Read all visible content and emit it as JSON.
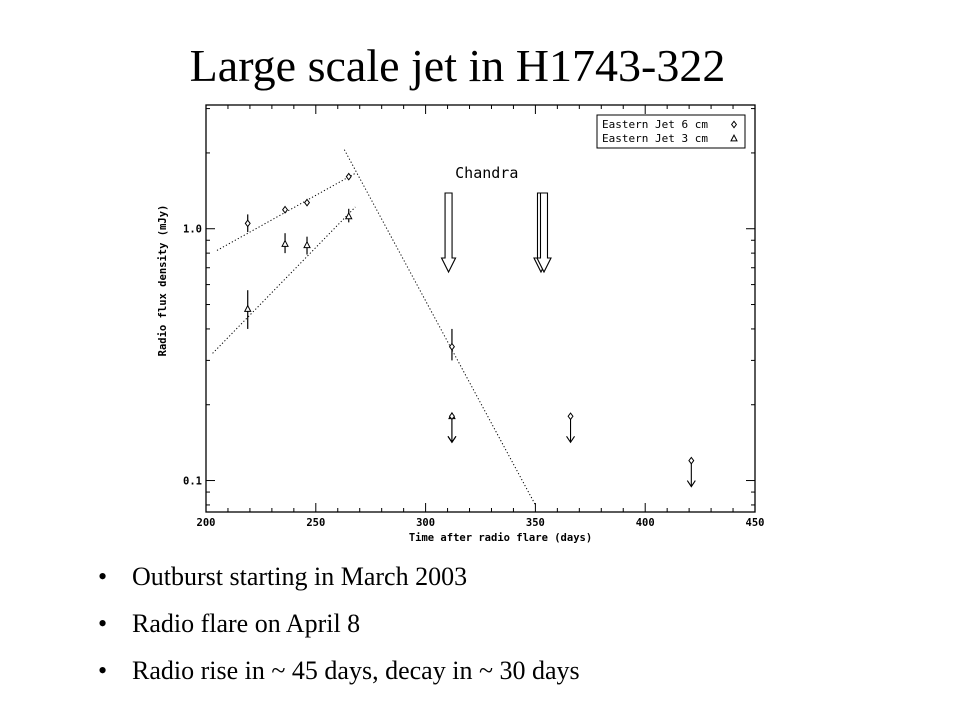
{
  "slide": {
    "title": "Large scale jet in H1743-322",
    "bullets": [
      "Outburst starting in March 2003",
      "Radio flare on April 8",
      "Radio rise in ~ 45 days, decay in ~ 30 days"
    ],
    "bullet_glyph": "•"
  },
  "chart_data": {
    "type": "scatter",
    "xlabel": "Time after radio flare (days)",
    "ylabel": "Radio flux density (mJy)",
    "xlim": [
      200,
      450
    ],
    "ylim": [
      0.075,
      3.1
    ],
    "yscale": "log",
    "x_ticks": [
      200,
      250,
      300,
      350,
      400,
      450
    ],
    "y_ticks": [
      {
        "value": 0.1,
        "label": "0.1"
      },
      {
        "value": 1.0,
        "label": "1.0"
      }
    ],
    "grid": false,
    "legend_position": "top-right",
    "legend": [
      {
        "label": "Eastern Jet 6 cm",
        "marker": "diamond"
      },
      {
        "label": "Eastern Jet 3 cm",
        "marker": "triangle"
      }
    ],
    "annotation": "Chandra",
    "chandra_days": [
      310,
      353
    ],
    "series": [
      {
        "name": "Eastern Jet 6 cm",
        "marker": "diamond",
        "points": [
          {
            "x": 219,
            "y": 1.05,
            "lo": 0.97,
            "hi": 1.14
          },
          {
            "x": 236,
            "y": 1.19
          },
          {
            "x": 246,
            "y": 1.27
          },
          {
            "x": 265,
            "y": 1.61
          },
          {
            "x": 312,
            "y": 0.34,
            "lo": 0.3,
            "hi": 0.4
          }
        ]
      },
      {
        "name": "Eastern Jet 3 cm",
        "marker": "triangle",
        "points": [
          {
            "x": 219,
            "y": 0.48,
            "lo": 0.4,
            "hi": 0.57
          },
          {
            "x": 236,
            "y": 0.87,
            "lo": 0.8,
            "hi": 0.96
          },
          {
            "x": 246,
            "y": 0.86,
            "lo": 0.79,
            "hi": 0.93
          },
          {
            "x": 265,
            "y": 1.12,
            "lo": 1.06,
            "hi": 1.2
          }
        ]
      }
    ],
    "upper_limits": [
      {
        "x": 312,
        "y": 0.18,
        "marker": "triangle"
      },
      {
        "x": 312,
        "y": 0.18,
        "marker": "diamond"
      },
      {
        "x": 366,
        "y": 0.18,
        "marker": "diamond"
      },
      {
        "x": 421,
        "y": 0.12,
        "marker": "diamond"
      }
    ],
    "fit_lines": [
      {
        "name": "6 cm rise",
        "from": {
          "x": 205,
          "y": 0.82
        },
        "to": {
          "x": 268,
          "y": 1.66
        }
      },
      {
        "name": "3 cm rise",
        "from": {
          "x": 203,
          "y": 0.32
        },
        "to": {
          "x": 268,
          "y": 1.22
        }
      },
      {
        "name": "decay",
        "from": {
          "x": 263,
          "y": 2.06
        },
        "to": {
          "x": 350,
          "y": 0.08
        }
      }
    ]
  }
}
